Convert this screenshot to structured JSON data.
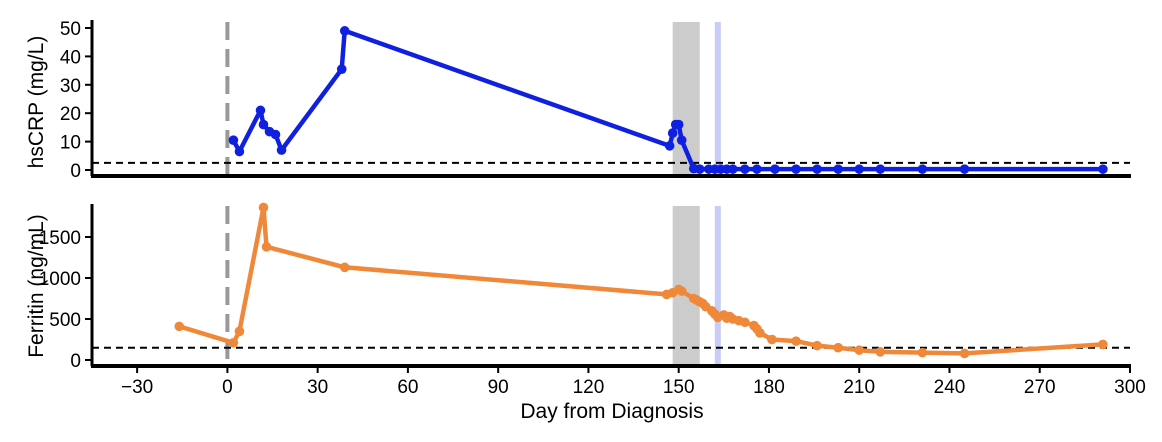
{
  "chart_data": [
    {
      "type": "line",
      "panel": "top",
      "ylabel": "hsCRP (mg/L)",
      "ylim": [
        0,
        50
      ],
      "yticks": [
        0,
        10,
        20,
        30,
        40,
        50
      ],
      "xlim": [
        -45,
        300
      ],
      "color": "#1020e0",
      "reference_line_y": 2.5,
      "series": [
        {
          "x": [
            2,
            4,
            11,
            12,
            14,
            16,
            18,
            38,
            39,
            147,
            148,
            149,
            150,
            151,
            155,
            157,
            160,
            162,
            164,
            166,
            168,
            172,
            176,
            182,
            189,
            196,
            203,
            210,
            217,
            231,
            245,
            291
          ],
          "y": [
            10.5,
            6.5,
            21,
            16,
            13.5,
            12.5,
            7,
            35.5,
            49,
            8.5,
            13,
            16,
            16,
            10.5,
            0.5,
            0.3,
            0.3,
            0.3,
            0.3,
            0.3,
            0.3,
            0.3,
            0.3,
            0.3,
            0.3,
            0.3,
            0.3,
            0.3,
            0.3,
            0.3,
            0.3,
            0.3
          ]
        }
      ]
    },
    {
      "type": "line",
      "panel": "bottom",
      "ylabel": "Ferritin (ng/mL)",
      "xlabel": "Day from Diagnosis",
      "ylim": [
        0,
        1900
      ],
      "yticks": [
        0,
        500,
        1000,
        1500
      ],
      "xlim": [
        -45,
        300
      ],
      "xticks": [
        -30,
        0,
        30,
        60,
        90,
        120,
        150,
        180,
        210,
        240,
        270,
        300
      ],
      "color": "#f0883a",
      "reference_line_y": 150,
      "series": [
        {
          "x": [
            -16,
            2,
            4,
            12,
            13,
            39,
            146,
            148,
            150,
            151,
            155,
            156,
            157,
            158,
            159,
            161,
            162,
            163,
            165,
            166,
            167,
            168,
            170,
            172,
            175,
            176,
            177,
            181,
            189,
            196,
            203,
            210,
            217,
            231,
            245,
            291
          ],
          "y": [
            410,
            210,
            350,
            1860,
            1380,
            1130,
            800,
            820,
            860,
            840,
            750,
            730,
            710,
            690,
            650,
            600,
            560,
            520,
            550,
            510,
            530,
            500,
            480,
            460,
            420,
            380,
            330,
            250,
            230,
            175,
            150,
            120,
            100,
            90,
            80,
            190
          ]
        }
      ]
    }
  ],
  "annotations": {
    "diagnosis_day": 0,
    "gray_band": [
      148,
      157
    ],
    "blue_line_day": 163
  },
  "colors": {
    "hscrp": "#1020e0",
    "ferritin": "#f0883a",
    "gray_band": "#cccccc",
    "blue_band": "#c8ccf6",
    "diagnosis_line": "#999999"
  }
}
